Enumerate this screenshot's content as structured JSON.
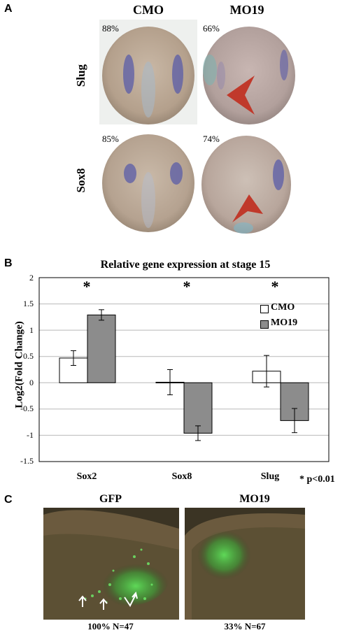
{
  "panelA": {
    "letter": "A",
    "col_headers": [
      "CMO",
      "MO19"
    ],
    "row_headers": [
      "Slug",
      "Sox8"
    ],
    "percentages": {
      "slug_cmo": "88%",
      "slug_mo19": "66%",
      "sox8_cmo": "85%",
      "sox8_mo19": "74%"
    }
  },
  "panelB": {
    "letter": "B",
    "significance_note": "* p<0.01",
    "star": "*",
    "legend": [
      {
        "label": "CMO",
        "color": "#ffffff"
      },
      {
        "label": "MO19",
        "color": "#8c8c8c"
      }
    ]
  },
  "chart_data": {
    "type": "bar",
    "title": "Relative gene expression at stage 15",
    "xlabel": "",
    "ylabel": "Log2(Fold Change)",
    "ylim": [
      -1.5,
      2
    ],
    "yticks": [
      "2",
      "1.5",
      "1",
      "0.5",
      "0",
      "-0.5",
      "-1",
      "-1.5"
    ],
    "categories": [
      "Sox2",
      "Sox8",
      "Slug"
    ],
    "series": [
      {
        "name": "CMO",
        "values": [
          0.47,
          0.01,
          0.22
        ],
        "errors": [
          0.14,
          0.24,
          0.3
        ]
      },
      {
        "name": "MO19",
        "values": [
          1.29,
          -0.96,
          -0.72
        ],
        "errors": [
          0.1,
          0.14,
          0.23
        ]
      }
    ],
    "significant": [
      true,
      true,
      true
    ]
  },
  "panelC": {
    "letter": "C",
    "left_title": "GFP",
    "right_title": "MO19",
    "left_caption": "100% N=47",
    "right_caption": "33% N=67"
  }
}
